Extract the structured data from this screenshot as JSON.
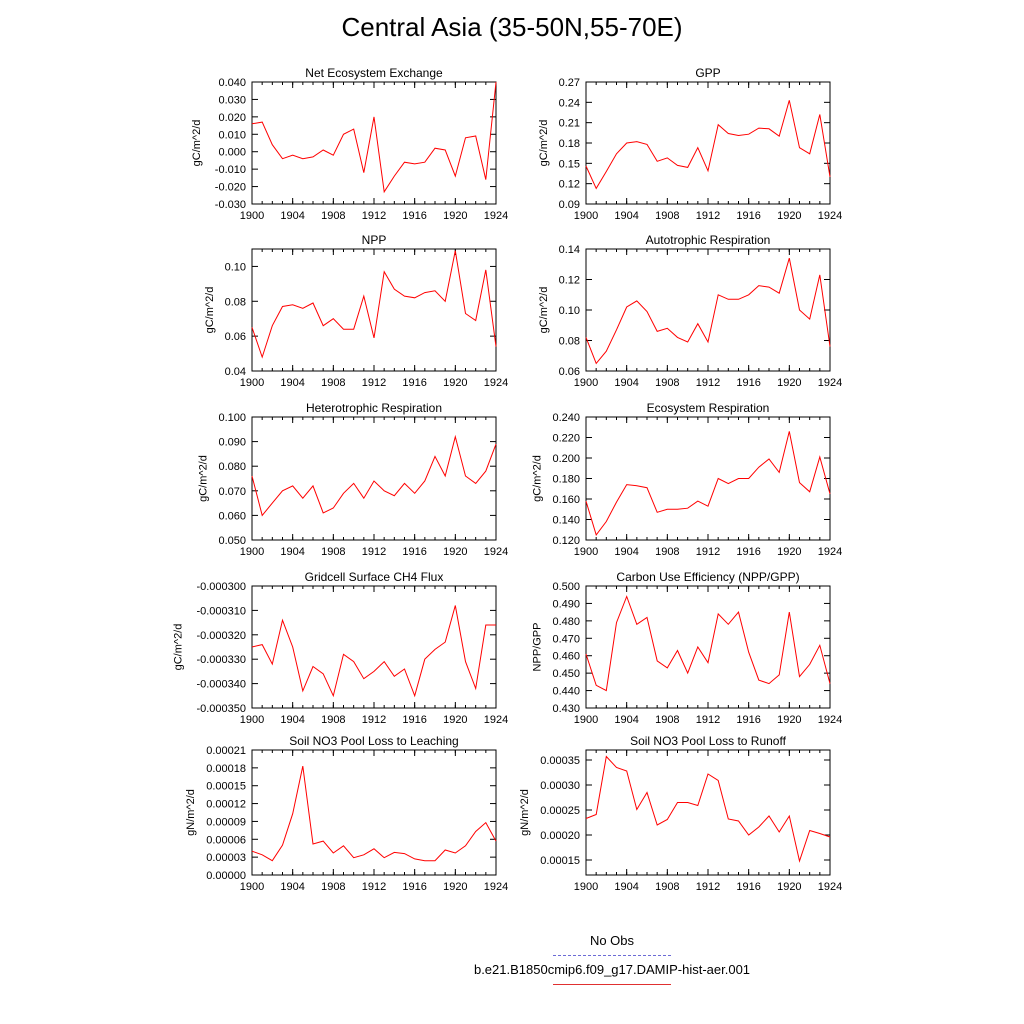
{
  "title": "Central Asia (35-50N,55-70E)",
  "legend": {
    "obs_label": "No Obs",
    "model_label": "b.e21.B1850cmip6.f09_g17.DAMIP-hist-aer.001",
    "obs_color": "#6b6bd6",
    "model_color": "#ff0000"
  },
  "chart_data": [
    {
      "type": "line",
      "title": "Net Ecosystem Exchange",
      "ylabel": "gC/m^2/d",
      "xlim": [
        1900,
        1924
      ],
      "ylim": [
        -0.03,
        0.04
      ],
      "xticks": [
        1900,
        1904,
        1908,
        1912,
        1916,
        1920,
        1924
      ],
      "xtick_labels": [
        "1900",
        "1904",
        "1908",
        "1912",
        "1916",
        "1920",
        "1924"
      ],
      "yticks": [
        -0.03,
        -0.02,
        -0.01,
        0.0,
        0.01,
        0.02,
        0.03,
        0.04
      ],
      "ytick_labels": [
        "-0.030",
        "-0.020",
        "-0.010",
        "0.000",
        "0.010",
        "0.020",
        "0.030",
        "0.040"
      ],
      "x": [
        1900,
        1901,
        1902,
        1903,
        1904,
        1905,
        1906,
        1907,
        1908,
        1909,
        1910,
        1911,
        1912,
        1913,
        1914,
        1915,
        1916,
        1917,
        1918,
        1919,
        1920,
        1921,
        1922,
        1923,
        1924
      ],
      "series": [
        {
          "values": [
            0.016,
            0.017,
            0.004,
            -0.004,
            -0.002,
            -0.004,
            -0.003,
            0.001,
            -0.002,
            0.01,
            0.013,
            -0.012,
            0.02,
            -0.023,
            -0.014,
            -0.006,
            -0.007,
            -0.006,
            0.002,
            0.001,
            -0.014,
            0.008,
            0.009,
            -0.016,
            0.04
          ]
        }
      ]
    },
    {
      "type": "line",
      "title": "GPP",
      "ylabel": "gC/m^2/d",
      "xlim": [
        1900,
        1924
      ],
      "ylim": [
        0.09,
        0.27
      ],
      "xticks": [
        1900,
        1904,
        1908,
        1912,
        1916,
        1920,
        1924
      ],
      "xtick_labels": [
        "1900",
        "1904",
        "1908",
        "1912",
        "1916",
        "1920",
        "1924"
      ],
      "yticks": [
        0.09,
        0.12,
        0.15,
        0.18,
        0.21,
        0.24,
        0.27
      ],
      "ytick_labels": [
        "0.09",
        "0.12",
        "0.15",
        "0.18",
        "0.21",
        "0.24",
        "0.27"
      ],
      "x": [
        1900,
        1901,
        1902,
        1903,
        1904,
        1905,
        1906,
        1907,
        1908,
        1909,
        1910,
        1911,
        1912,
        1913,
        1914,
        1915,
        1916,
        1917,
        1918,
        1919,
        1920,
        1921,
        1922,
        1923,
        1924
      ],
      "series": [
        {
          "values": [
            0.146,
            0.113,
            0.138,
            0.164,
            0.18,
            0.182,
            0.178,
            0.153,
            0.158,
            0.147,
            0.144,
            0.173,
            0.139,
            0.207,
            0.194,
            0.191,
            0.193,
            0.202,
            0.201,
            0.19,
            0.243,
            0.173,
            0.164,
            0.222,
            0.13
          ]
        }
      ]
    },
    {
      "type": "line",
      "title": "NPP",
      "ylabel": "gC/m^2/d",
      "xlim": [
        1900,
        1924
      ],
      "ylim": [
        0.04,
        0.11
      ],
      "xticks": [
        1900,
        1904,
        1908,
        1912,
        1916,
        1920,
        1924
      ],
      "xtick_labels": [
        "1900",
        "1904",
        "1908",
        "1912",
        "1916",
        "1920",
        "1924"
      ],
      "yticks": [
        0.04,
        0.06,
        0.08,
        0.1
      ],
      "ytick_labels": [
        "0.04",
        "0.06",
        "0.08",
        "0.10"
      ],
      "x": [
        1900,
        1901,
        1902,
        1903,
        1904,
        1905,
        1906,
        1907,
        1908,
        1909,
        1910,
        1911,
        1912,
        1913,
        1914,
        1915,
        1916,
        1917,
        1918,
        1919,
        1920,
        1921,
        1922,
        1923,
        1924
      ],
      "series": [
        {
          "values": [
            0.065,
            0.048,
            0.066,
            0.077,
            0.078,
            0.076,
            0.079,
            0.066,
            0.07,
            0.064,
            0.064,
            0.083,
            0.059,
            0.097,
            0.087,
            0.083,
            0.082,
            0.085,
            0.086,
            0.08,
            0.109,
            0.073,
            0.069,
            0.098,
            0.054
          ]
        }
      ]
    },
    {
      "type": "line",
      "title": "Autotrophic Respiration",
      "ylabel": "gC/m^2/d",
      "xlim": [
        1900,
        1924
      ],
      "ylim": [
        0.06,
        0.14
      ],
      "xticks": [
        1900,
        1904,
        1908,
        1912,
        1916,
        1920,
        1924
      ],
      "xtick_labels": [
        "1900",
        "1904",
        "1908",
        "1912",
        "1916",
        "1920",
        "1924"
      ],
      "yticks": [
        0.06,
        0.08,
        0.1,
        0.12,
        0.14
      ],
      "ytick_labels": [
        "0.06",
        "0.08",
        "0.10",
        "0.12",
        "0.14"
      ],
      "x": [
        1900,
        1901,
        1902,
        1903,
        1904,
        1905,
        1906,
        1907,
        1908,
        1909,
        1910,
        1911,
        1912,
        1913,
        1914,
        1915,
        1916,
        1917,
        1918,
        1919,
        1920,
        1921,
        1922,
        1923,
        1924
      ],
      "series": [
        {
          "values": [
            0.082,
            0.065,
            0.073,
            0.087,
            0.102,
            0.106,
            0.099,
            0.086,
            0.088,
            0.082,
            0.079,
            0.091,
            0.079,
            0.11,
            0.107,
            0.107,
            0.11,
            0.116,
            0.115,
            0.111,
            0.134,
            0.1,
            0.094,
            0.123,
            0.076
          ]
        }
      ]
    },
    {
      "type": "line",
      "title": "Heterotrophic Respiration",
      "ylabel": "gC/m^2/d",
      "xlim": [
        1900,
        1924
      ],
      "ylim": [
        0.05,
        0.1
      ],
      "xticks": [
        1900,
        1904,
        1908,
        1912,
        1916,
        1920,
        1924
      ],
      "xtick_labels": [
        "1900",
        "1904",
        "1908",
        "1912",
        "1916",
        "1920",
        "1924"
      ],
      "yticks": [
        0.05,
        0.06,
        0.07,
        0.08,
        0.09,
        0.1
      ],
      "ytick_labels": [
        "0.050",
        "0.060",
        "0.070",
        "0.080",
        "0.090",
        "0.100"
      ],
      "x": [
        1900,
        1901,
        1902,
        1903,
        1904,
        1905,
        1906,
        1907,
        1908,
        1909,
        1910,
        1911,
        1912,
        1913,
        1914,
        1915,
        1916,
        1917,
        1918,
        1919,
        1920,
        1921,
        1922,
        1923,
        1924
      ],
      "series": [
        {
          "values": [
            0.076,
            0.06,
            0.065,
            0.07,
            0.072,
            0.067,
            0.072,
            0.061,
            0.063,
            0.069,
            0.073,
            0.067,
            0.074,
            0.07,
            0.068,
            0.073,
            0.069,
            0.074,
            0.084,
            0.076,
            0.092,
            0.076,
            0.073,
            0.078,
            0.089
          ]
        }
      ]
    },
    {
      "type": "line",
      "title": "Ecosystem Respiration",
      "ylabel": "gC/m^2/d",
      "xlim": [
        1900,
        1924
      ],
      "ylim": [
        0.12,
        0.24
      ],
      "xticks": [
        1900,
        1904,
        1908,
        1912,
        1916,
        1920,
        1924
      ],
      "xtick_labels": [
        "1900",
        "1904",
        "1908",
        "1912",
        "1916",
        "1920",
        "1924"
      ],
      "yticks": [
        0.12,
        0.14,
        0.16,
        0.18,
        0.2,
        0.22,
        0.24
      ],
      "ytick_labels": [
        "0.120",
        "0.140",
        "0.160",
        "0.180",
        "0.200",
        "0.220",
        "0.240"
      ],
      "x": [
        1900,
        1901,
        1902,
        1903,
        1904,
        1905,
        1906,
        1907,
        1908,
        1909,
        1910,
        1911,
        1912,
        1913,
        1914,
        1915,
        1916,
        1917,
        1918,
        1919,
        1920,
        1921,
        1922,
        1923,
        1924
      ],
      "series": [
        {
          "values": [
            0.158,
            0.125,
            0.138,
            0.157,
            0.174,
            0.173,
            0.171,
            0.147,
            0.15,
            0.15,
            0.151,
            0.158,
            0.153,
            0.18,
            0.175,
            0.18,
            0.18,
            0.191,
            0.199,
            0.186,
            0.226,
            0.176,
            0.167,
            0.201,
            0.165
          ]
        }
      ]
    },
    {
      "type": "line",
      "title": "Gridcell Surface CH4 Flux",
      "ylabel": "gC/m^2/d",
      "xlim": [
        1900,
        1924
      ],
      "ylim": [
        -0.00035,
        -0.0003
      ],
      "xticks": [
        1900,
        1904,
        1908,
        1912,
        1916,
        1920,
        1924
      ],
      "xtick_labels": [
        "1900",
        "1904",
        "1908",
        "1912",
        "1916",
        "1920",
        "1924"
      ],
      "yticks": [
        -0.00035,
        -0.00034,
        -0.00033,
        -0.00032,
        -0.00031,
        -0.0003
      ],
      "ytick_labels": [
        "-0.000350",
        "-0.000340",
        "-0.000330",
        "-0.000320",
        "-0.000310",
        "-0.000300"
      ],
      "x": [
        1900,
        1901,
        1902,
        1903,
        1904,
        1905,
        1906,
        1907,
        1908,
        1909,
        1910,
        1911,
        1912,
        1913,
        1914,
        1915,
        1916,
        1917,
        1918,
        1919,
        1920,
        1921,
        1922,
        1923,
        1924
      ],
      "series": [
        {
          "values": [
            -0.000325,
            -0.000324,
            -0.000332,
            -0.000314,
            -0.000325,
            -0.000343,
            -0.000333,
            -0.000336,
            -0.000345,
            -0.000328,
            -0.000331,
            -0.000338,
            -0.000335,
            -0.000331,
            -0.000337,
            -0.000334,
            -0.000345,
            -0.00033,
            -0.000326,
            -0.000323,
            -0.000308,
            -0.000331,
            -0.000342,
            -0.000316,
            -0.000316
          ]
        }
      ]
    },
    {
      "type": "line",
      "title": "Carbon Use Efficiency (NPP/GPP)",
      "ylabel": "NPP/GPP",
      "xlim": [
        1900,
        1924
      ],
      "ylim": [
        0.43,
        0.5
      ],
      "xticks": [
        1900,
        1904,
        1908,
        1912,
        1916,
        1920,
        1924
      ],
      "xtick_labels": [
        "1900",
        "1904",
        "1908",
        "1912",
        "1916",
        "1920",
        "1924"
      ],
      "yticks": [
        0.43,
        0.44,
        0.45,
        0.46,
        0.47,
        0.48,
        0.49,
        0.5
      ],
      "ytick_labels": [
        "0.430",
        "0.440",
        "0.450",
        "0.460",
        "0.470",
        "0.480",
        "0.490",
        "0.500"
      ],
      "x": [
        1900,
        1901,
        1902,
        1903,
        1904,
        1905,
        1906,
        1907,
        1908,
        1909,
        1910,
        1911,
        1912,
        1913,
        1914,
        1915,
        1916,
        1917,
        1918,
        1919,
        1920,
        1921,
        1922,
        1923,
        1924
      ],
      "series": [
        {
          "values": [
            0.461,
            0.443,
            0.44,
            0.479,
            0.494,
            0.478,
            0.482,
            0.457,
            0.453,
            0.463,
            0.45,
            0.465,
            0.456,
            0.484,
            0.478,
            0.485,
            0.462,
            0.446,
            0.444,
            0.449,
            0.485,
            0.448,
            0.455,
            0.466,
            0.444
          ]
        }
      ]
    },
    {
      "type": "line",
      "title": "Soil NO3 Pool Loss to Leaching",
      "ylabel": "gN/m^2/d",
      "xlim": [
        1900,
        1924
      ],
      "ylim": [
        0.0,
        0.00021
      ],
      "xticks": [
        1900,
        1904,
        1908,
        1912,
        1916,
        1920,
        1924
      ],
      "xtick_labels": [
        "1900",
        "1904",
        "1908",
        "1912",
        "1916",
        "1920",
        "1924"
      ],
      "yticks": [
        0.0,
        3e-05,
        6e-05,
        9e-05,
        0.00012,
        0.00015,
        0.00018,
        0.00021
      ],
      "ytick_labels": [
        "0.00000",
        "0.00003",
        "0.00006",
        "0.00009",
        "0.00012",
        "0.00015",
        "0.00018",
        "0.00021"
      ],
      "x": [
        1900,
        1901,
        1902,
        1903,
        1904,
        1905,
        1906,
        1907,
        1908,
        1909,
        1910,
        1911,
        1912,
        1913,
        1914,
        1915,
        1916,
        1917,
        1918,
        1919,
        1920,
        1921,
        1922,
        1923,
        1924
      ],
      "series": [
        {
          "values": [
            4e-05,
            3.4e-05,
            2.4e-05,
            5e-05,
            0.000103,
            0.000183,
            5.2e-05,
            5.7e-05,
            3.7e-05,
            4.9e-05,
            2.9e-05,
            3.4e-05,
            4.4e-05,
            2.9e-05,
            3.8e-05,
            3.6e-05,
            2.7e-05,
            2.4e-05,
            2.4e-05,
            4.2e-05,
            3.7e-05,
            4.9e-05,
            7.3e-05,
            8.8e-05,
            5.7e-05
          ]
        }
      ]
    },
    {
      "type": "line",
      "title": "Soil NO3 Pool Loss to Runoff",
      "ylabel": "gN/m^2/d",
      "xlim": [
        1900,
        1924
      ],
      "ylim": [
        0.00012,
        0.00037
      ],
      "xticks": [
        1900,
        1904,
        1908,
        1912,
        1916,
        1920,
        1924
      ],
      "xtick_labels": [
        "1900",
        "1904",
        "1908",
        "1912",
        "1916",
        "1920",
        "1924"
      ],
      "yticks": [
        0.00015,
        0.0002,
        0.00025,
        0.0003,
        0.00035
      ],
      "ytick_labels": [
        "0.00015",
        "0.00020",
        "0.00025",
        "0.00030",
        "0.00035"
      ],
      "x": [
        1900,
        1901,
        1902,
        1903,
        1904,
        1905,
        1906,
        1907,
        1908,
        1909,
        1910,
        1911,
        1912,
        1913,
        1914,
        1915,
        1916,
        1917,
        1918,
        1919,
        1920,
        1921,
        1922,
        1923,
        1924
      ],
      "series": [
        {
          "values": [
            0.000233,
            0.000241,
            0.000357,
            0.000335,
            0.000328,
            0.000251,
            0.000285,
            0.00022,
            0.000231,
            0.000265,
            0.000265,
            0.000259,
            0.000322,
            0.000309,
            0.000232,
            0.000228,
            0.0002,
            0.000216,
            0.000238,
            0.000206,
            0.000238,
            0.000148,
            0.000209,
            0.000203,
            0.000196
          ]
        }
      ]
    }
  ]
}
